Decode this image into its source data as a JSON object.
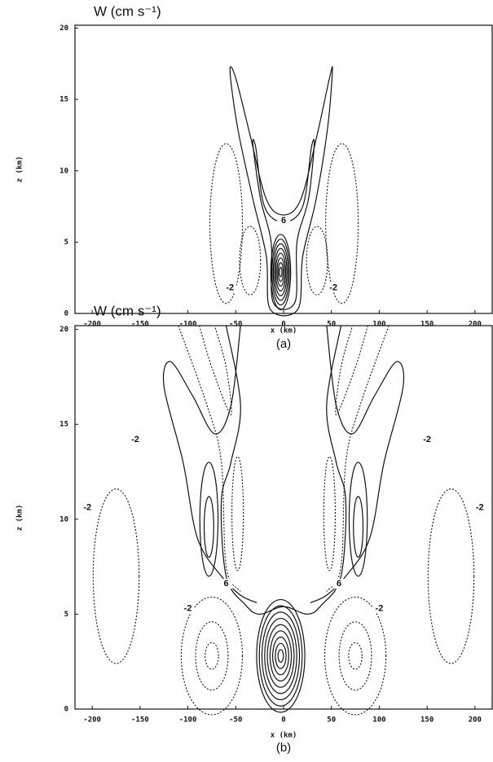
{
  "chart_data": [
    {
      "type": "contour",
      "title": "W (cm s⁻¹)",
      "xlabel": "x (km)",
      "ylabel": "z (km)",
      "panel_label": "(a)",
      "xlim": [
        -218,
        218
      ],
      "ylim": [
        0,
        20.2
      ],
      "xticks": [
        -200,
        -150,
        -100,
        -50,
        0,
        50,
        100,
        150,
        200
      ],
      "yticks": [
        0,
        5,
        10,
        15,
        20
      ],
      "contour_labels": [
        6,
        -2,
        -2
      ]
    },
    {
      "type": "contour",
      "title": "W (cm s⁻¹)",
      "xlabel": "x (km)",
      "ylabel": "z (km)",
      "panel_label": "(b)",
      "xlim": [
        -218,
        218
      ],
      "ylim": [
        0,
        20.2
      ],
      "xticks": [
        -200,
        -150,
        -100,
        -50,
        0,
        50,
        100,
        150,
        200
      ],
      "yticks": [
        0,
        5,
        10,
        15,
        20
      ],
      "contour_labels": [
        -2,
        -2,
        -2,
        -2,
        6,
        6,
        -2,
        -2
      ]
    }
  ]
}
